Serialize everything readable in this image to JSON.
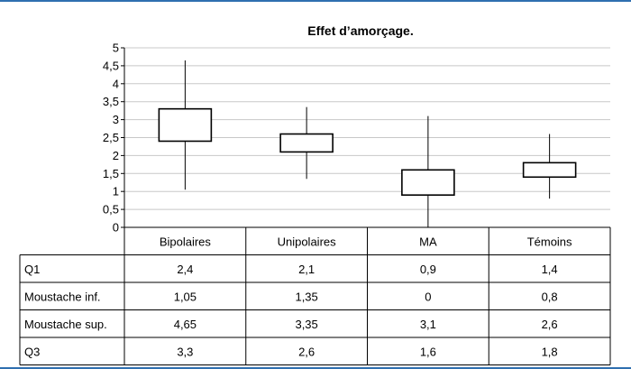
{
  "chart_data": {
    "type": "box",
    "title": "Effet d’amorçage.",
    "ylim": [
      0,
      5
    ],
    "yticks": [
      "0",
      "0,5",
      "1",
      "1,5",
      "2",
      "2,5",
      "3",
      "3,5",
      "4",
      "4,5",
      "5"
    ],
    "grid": true,
    "categories": [
      "Bipolaires",
      "Unipolaires",
      "MA",
      "Témoins"
    ],
    "q1": [
      2.4,
      2.1,
      0.9,
      1.4
    ],
    "whisker_low": [
      1.05,
      1.35,
      0,
      0.8
    ],
    "whisker_high": [
      4.65,
      3.35,
      3.1,
      2.6
    ],
    "q3": [
      3.3,
      2.6,
      1.6,
      1.8
    ]
  },
  "table": {
    "row_labels": [
      "Q1",
      "Moustache inf.",
      "Moustache sup.",
      "Q3"
    ],
    "rows": [
      [
        "2,4",
        "2,1",
        "0,9",
        "1,4"
      ],
      [
        "1,05",
        "1,35",
        "0",
        "0,8"
      ],
      [
        "4,65",
        "3,35",
        "3,1",
        "2,6"
      ],
      [
        "3,3",
        "2,6",
        "1,6",
        "1,8"
      ]
    ]
  },
  "colors": {
    "frame": "#2f6fb0",
    "grid": "#c8c8c8"
  }
}
